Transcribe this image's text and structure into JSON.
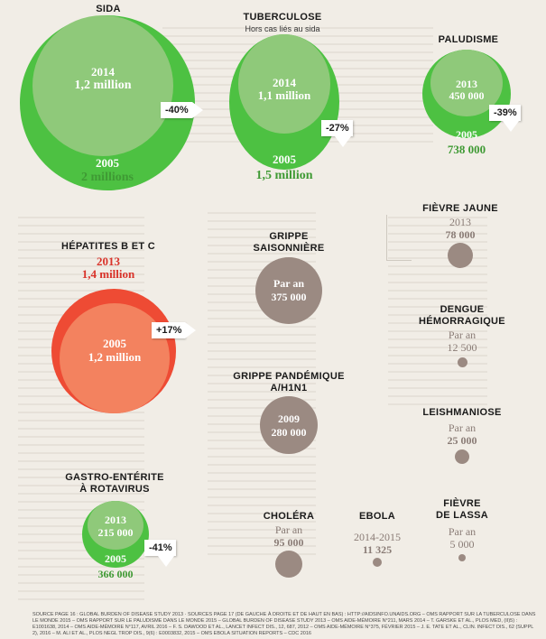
{
  "sida": {
    "label": "SIDA",
    "year_2014": "2014",
    "value_2014": "1,2 million",
    "change": "-40%",
    "year_2005": "2005",
    "value_2005": "2 millions"
  },
  "tuberculose": {
    "label": "TUBERCULOSE",
    "sublabel": "Hors cas liés au sida",
    "year_2014": "2014",
    "value_2014": "1,1 million",
    "change": "-27%",
    "year_2005": "2005",
    "value_2005": "1,5 million"
  },
  "paludisme": {
    "label": "PALUDISME",
    "year_2013": "2013",
    "value_2013": "450 000",
    "change": "-39%",
    "year_2005": "2005",
    "value_2005": "738 000"
  },
  "fievre_jaune": {
    "label": "FIÈVRE JAUNE",
    "year": "2013",
    "value": "78 000"
  },
  "hepatites": {
    "label": "HÉPATITES B ET C",
    "year_2013": "2013",
    "value_2013": "1,4 million",
    "change": "+17%",
    "year_2005": "2005",
    "value_2005": "1,2 million"
  },
  "grippe_saisonniere": {
    "label_line1": "GRIPPE",
    "label_line2": "SAISONNIÈRE",
    "per_year": "Par an",
    "value": "375 000"
  },
  "dengue": {
    "label_line1": "DENGUE",
    "label_line2": "HÉMORRAGIQUE",
    "per_year": "Par an",
    "value": "12 500"
  },
  "grippe_pandemique": {
    "label_line1": "GRIPPE PANDÉMIQUE",
    "label_line2": "A/H1N1",
    "year": "2009",
    "value": "280 000"
  },
  "leishmaniose": {
    "label": "LEISHMANIOSE",
    "per_year": "Par an",
    "value": "25 000"
  },
  "rotavirus": {
    "label_line1": "GASTRO-ENTÉRITE",
    "label_line2": "À ROTAVIRUS",
    "year_2013": "2013",
    "value_2013": "215 000",
    "change": "-41%",
    "year_2005": "2005",
    "value_2005": "366 000"
  },
  "cholera": {
    "label": "CHOLÉRA",
    "per_year": "Par an",
    "value": "95 000"
  },
  "ebola": {
    "label": "EBOLA",
    "years": "2014-2015",
    "value": "11 325"
  },
  "lassa": {
    "label_line1": "FIÈVRE",
    "label_line2": "DE LASSA",
    "per_year": "Par an",
    "value": "5 000"
  },
  "source": "SOURCE PAGE 16 : GLOBAL BURDEN OF DISEASE STUDY 2013 · SOURCES PAGE 17 (DE GAUCHE À DROITE ET DE HAUT EN BAS) : HTTP://AIDSINFO.UNAIDS.ORG – OMS RAPPORT SUR LA TUBERCULOSE DANS LE MONDE 2015 – OMS RAPPORT SUR LE PALUDISME DANS LE MONDE 2015 – GLOBAL BURDEN OF DISEASE STUDY 2013 – OMS AIDE-MÉMOIRE N°211, MARS 2014 – T. GARSKE ET AL., PLOS MED, (II)5) : E1001638, 2014 – OMS AIDE-MÉMOIRE N°117, AVRIL 2016 – F. S. DAWOOD ET AL., LANCET INFECT DIS., 12, 687, 2012 – OMS AIDE-MÉMOIRE N°375, FÉVRIER 2015 – J. E. TATE ET AL., CLIN. INFECT DIS., 62 (SUPPL 2), 2016 – M. ALI ET AL., PLOS NEGL TROP DIS., 9(6) : E0003832, 2015 – OMS EBOLA SITUATION REPORTS – CDC 2016",
  "colors": {
    "green_outer": "#4dc142",
    "green_inner": "#8fc97a",
    "red_outer": "#ee4b34",
    "red_inner": "#f3825f",
    "grey": "#9b8a82",
    "background": "#f1ede6"
  }
}
